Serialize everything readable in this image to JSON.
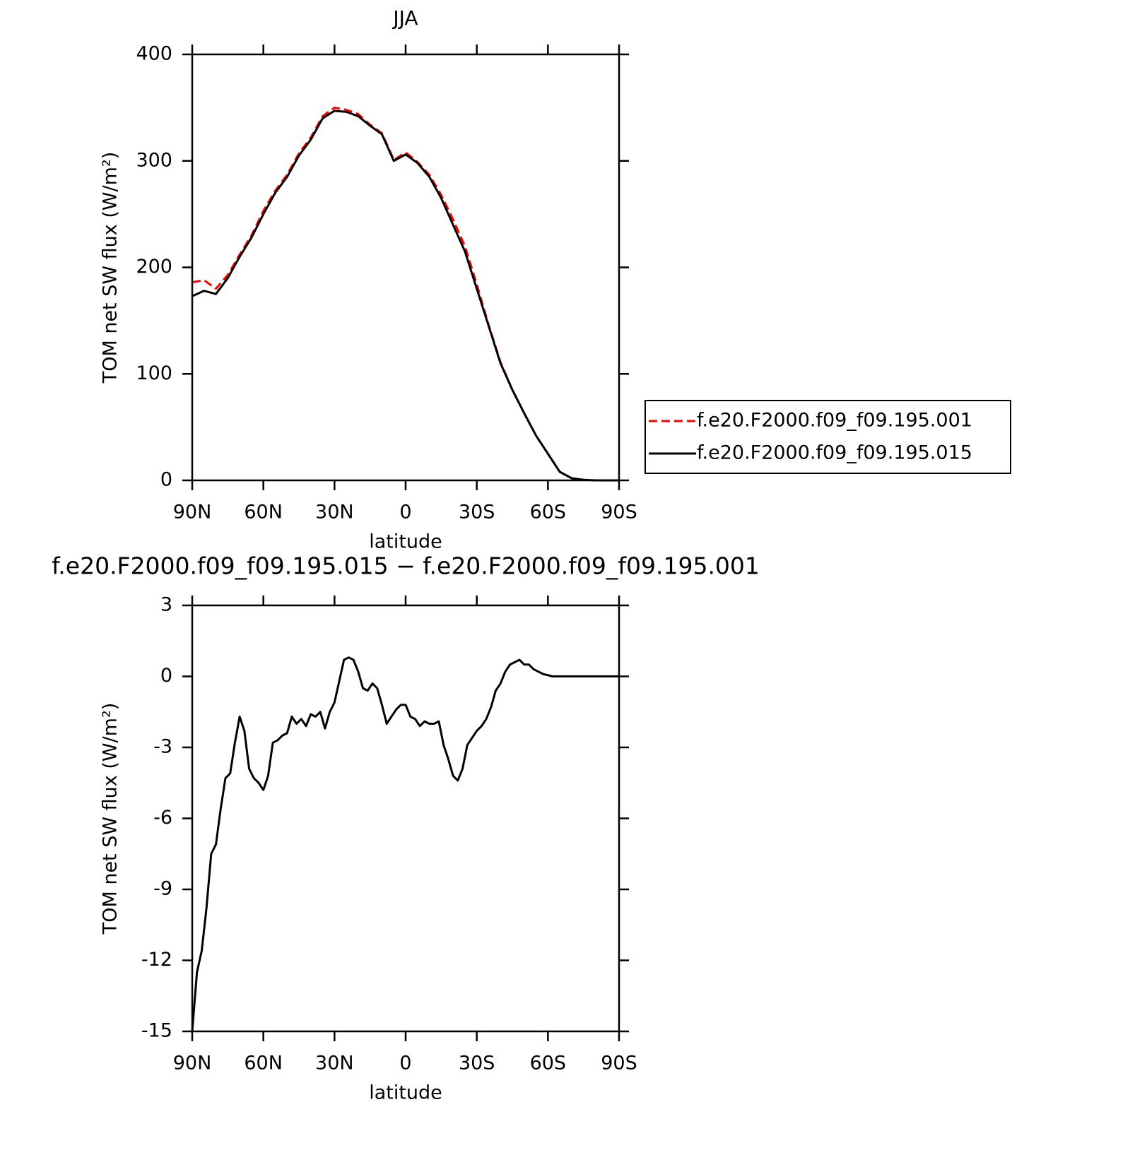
{
  "chart_data": [
    {
      "type": "line",
      "title": "JJA",
      "xlabel": "latitude",
      "ylabel": "TOM net SW flux (W/m²)",
      "xlim": [
        90,
        -90
      ],
      "xticks": [
        {
          "value": 90,
          "label": "90N"
        },
        {
          "value": 60,
          "label": "60N"
        },
        {
          "value": 30,
          "label": "30N"
        },
        0,
        {
          "value": -30,
          "label": "30S"
        },
        {
          "value": -60,
          "label": "60S"
        },
        {
          "value": -90,
          "label": "90S"
        }
      ],
      "ylim": [
        0,
        400
      ],
      "yticks": [
        0,
        100,
        200,
        300,
        400
      ],
      "legend": "right",
      "x": [
        90,
        85,
        80,
        75,
        70,
        65,
        60,
        55,
        50,
        45,
        40,
        35,
        30,
        25,
        20,
        15,
        10,
        5,
        0,
        -5,
        -10,
        -15,
        -20,
        -25,
        -30,
        -35,
        -40,
        -45,
        -50,
        -55,
        -60,
        -65,
        -70,
        -75,
        -80,
        -85,
        -90
      ],
      "series": [
        {
          "name": "f.e20.F2000.f09_f09.195.001",
          "color": "#ff0000",
          "dashed": true,
          "values": [
            186,
            188,
            180,
            193,
            212,
            230,
            253,
            272,
            287,
            307,
            322,
            342,
            350,
            348,
            344,
            334,
            326,
            301,
            308,
            299,
            287,
            268,
            245,
            220,
            184,
            146,
            111,
            85,
            63,
            42,
            25,
            8,
            2,
            0.5,
            0,
            0,
            0
          ]
        },
        {
          "name": "f.e20.F2000.f09_f09.195.015",
          "color": "#000000",
          "dashed": false,
          "values": [
            173,
            178,
            175,
            190,
            210,
            228,
            250,
            270,
            285,
            305,
            320,
            340,
            347,
            346,
            342,
            333,
            325,
            300,
            306,
            298,
            285,
            265,
            240,
            215,
            180,
            145,
            110,
            85,
            63,
            42,
            25,
            8,
            2,
            0.5,
            0,
            0,
            0
          ]
        }
      ]
    },
    {
      "type": "line",
      "title": "f.e20.F2000.f09_f09.195.015 − f.e20.F2000.f09_f09.195.001",
      "xlabel": "latitude",
      "ylabel": "TOM net SW flux (W/m²)",
      "xlim": [
        90,
        -90
      ],
      "xticks": [
        {
          "value": 90,
          "label": "90N"
        },
        {
          "value": 60,
          "label": "60N"
        },
        {
          "value": 30,
          "label": "30N"
        },
        0,
        {
          "value": -30,
          "label": "30S"
        },
        {
          "value": -60,
          "label": "60S"
        },
        {
          "value": -90,
          "label": "90S"
        }
      ],
      "ylim": [
        -15,
        3
      ],
      "yticks": [
        -15,
        -12,
        -9,
        -6,
        -3,
        0,
        3
      ],
      "x": [
        90,
        88,
        86,
        84,
        82,
        80,
        78,
        76,
        74,
        72,
        70,
        68,
        66,
        64,
        62,
        60,
        58,
        56,
        54,
        52,
        50,
        48,
        46,
        44,
        42,
        40,
        38,
        36,
        34,
        32,
        30,
        28,
        26,
        24,
        22,
        20,
        18,
        16,
        14,
        12,
        10,
        8,
        6,
        4,
        2,
        0,
        -2,
        -4,
        -6,
        -8,
        -10,
        -12,
        -14,
        -16,
        -18,
        -20,
        -22,
        -24,
        -26,
        -28,
        -30,
        -32,
        -34,
        -36,
        -38,
        -40,
        -42,
        -44,
        -46,
        -48,
        -50,
        -52,
        -54,
        -56,
        -58,
        -60,
        -62,
        -64,
        -66,
        -68,
        -70,
        -72,
        -74,
        -76,
        -78,
        -80,
        -82,
        -84,
        -86,
        -88,
        -90
      ],
      "series": [
        {
          "color": "#000000",
          "dashed": false,
          "values": [
            -15,
            -12.5,
            -11.6,
            -9.8,
            -7.5,
            -7.1,
            -5.6,
            -4.3,
            -4.1,
            -2.8,
            -1.7,
            -2.3,
            -3.9,
            -4.3,
            -4.5,
            -4.8,
            -4.2,
            -2.8,
            -2.7,
            -2.5,
            -2.4,
            -1.7,
            -2.0,
            -1.8,
            -2.1,
            -1.6,
            -1.7,
            -1.5,
            -2.2,
            -1.5,
            -1.1,
            -0.2,
            0.7,
            0.8,
            0.7,
            0.2,
            -0.5,
            -0.6,
            -0.3,
            -0.5,
            -1.2,
            -2.0,
            -1.7,
            -1.4,
            -1.2,
            -1.2,
            -1.7,
            -1.8,
            -2.1,
            -1.9,
            -2.0,
            -2.0,
            -1.9,
            -2.9,
            -3.5,
            -4.2,
            -4.4,
            -3.9,
            -2.9,
            -2.6,
            -2.3,
            -2.1,
            -1.8,
            -1.3,
            -0.6,
            -0.3,
            0.2,
            0.5,
            0.6,
            0.7,
            0.5,
            0.5,
            0.3,
            0.2,
            0.1,
            0.05,
            0,
            0,
            0,
            0,
            0,
            0,
            0,
            0,
            0,
            0,
            0,
            0,
            0,
            0,
            0
          ]
        }
      ]
    }
  ]
}
